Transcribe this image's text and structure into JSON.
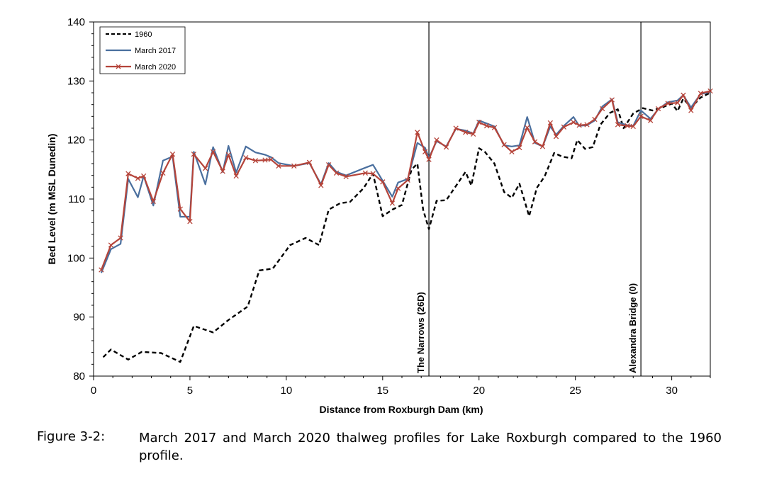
{
  "chart_data": {
    "type": "line",
    "xlabel": "Distance from Roxburgh Dam (km)",
    "ylabel": "Bed Level (m MSL Dunedin)",
    "xlim": [
      0,
      32
    ],
    "ylim": [
      80,
      140
    ],
    "xticks": [
      0,
      5,
      10,
      15,
      20,
      25,
      30
    ],
    "yticks": [
      80,
      90,
      100,
      110,
      120,
      130,
      140
    ],
    "legend_position": "top-left",
    "vertical_markers": [
      {
        "x": 17.4,
        "label": "The Narrows (26D)"
      },
      {
        "x": 28.4,
        "label": "Alexandra Bridge (0)"
      }
    ],
    "series": [
      {
        "name": "1960",
        "style": "dashed",
        "color": "#000000",
        "x": [
          0.5,
          0.9,
          1.8,
          2.5,
          3.5,
          4.5,
          5.2,
          6.2,
          7.0,
          8.0,
          8.6,
          9.3,
          10.2,
          11.0,
          11.7,
          12.2,
          12.8,
          13.3,
          14.0,
          14.5,
          15.0,
          15.5,
          16.0,
          16.5,
          16.8,
          17.1,
          17.4,
          17.8,
          18.3,
          18.8,
          19.3,
          19.6,
          20.0,
          20.3,
          20.8,
          21.3,
          21.7,
          22.1,
          22.6,
          23.0,
          23.4,
          23.9,
          24.3,
          24.8,
          25.1,
          25.5,
          25.9,
          26.3,
          26.8,
          27.2,
          27.5,
          28.0,
          28.5,
          29.0,
          29.5,
          30.0,
          30.3,
          30.6,
          31.0,
          31.5,
          32.0
        ],
        "values": [
          83.2,
          84.5,
          82.8,
          84.1,
          83.9,
          82.4,
          88.5,
          87.4,
          89.5,
          91.8,
          97.9,
          98.2,
          102.2,
          103.4,
          102.2,
          108.2,
          109.3,
          109.5,
          111.8,
          114.3,
          107.1,
          108.2,
          109.0,
          115.0,
          116.0,
          108.2,
          104.9,
          109.7,
          109.8,
          112.2,
          114.6,
          112.3,
          118.6,
          118.0,
          116.0,
          111.2,
          110.2,
          112.6,
          107.1,
          111.9,
          113.8,
          117.8,
          117.2,
          116.9,
          120.0,
          118.5,
          118.8,
          122.6,
          124.6,
          125.2,
          122.0,
          124.5,
          125.4,
          125.0,
          125.5,
          126.2,
          124.9,
          127.0,
          125.5,
          127.2,
          128.0
        ]
      },
      {
        "name": "March 2017",
        "style": "solid",
        "color": "#4a6f9e",
        "x": [
          0.4,
          0.9,
          1.4,
          1.8,
          2.3,
          2.6,
          3.1,
          3.6,
          4.1,
          4.5,
          5.0,
          5.2,
          5.8,
          6.2,
          6.7,
          7.0,
          7.4,
          7.9,
          8.4,
          8.9,
          9.2,
          9.6,
          10.4,
          11.2,
          11.8,
          12.2,
          12.6,
          13.1,
          14.1,
          14.5,
          15.0,
          15.5,
          15.8,
          16.3,
          16.8,
          17.2,
          17.4,
          17.8,
          18.3,
          18.8,
          19.3,
          19.7,
          20.0,
          20.4,
          20.8,
          21.3,
          21.7,
          22.1,
          22.5,
          22.9,
          23.3,
          23.7,
          24.0,
          24.4,
          24.9,
          25.2,
          25.6,
          26.0,
          26.4,
          26.9,
          27.2,
          27.7,
          28.0,
          28.4,
          28.9,
          29.3,
          29.8,
          30.3,
          30.6,
          31.0,
          31.5,
          32.0
        ],
        "values": [
          97.5,
          101.5,
          102.4,
          113.4,
          110.3,
          113.9,
          108.9,
          116.5,
          117.2,
          107.0,
          107.0,
          118.0,
          112.5,
          118.8,
          114.6,
          119.0,
          114.5,
          118.9,
          117.9,
          117.5,
          117.1,
          116.1,
          115.6,
          116.1,
          112.5,
          116.1,
          114.6,
          114.0,
          115.3,
          115.8,
          113.1,
          110.4,
          112.8,
          113.4,
          119.5,
          118.7,
          117.0,
          119.8,
          118.9,
          121.9,
          121.6,
          121.1,
          123.3,
          122.8,
          122.3,
          119.1,
          118.9,
          119.1,
          123.9,
          119.5,
          118.9,
          122.3,
          120.9,
          122.4,
          123.9,
          122.4,
          122.5,
          123.3,
          125.7,
          126.9,
          123.0,
          122.5,
          122.4,
          125.0,
          123.6,
          125.2,
          126.4,
          126.7,
          127.6,
          125.5,
          127.8,
          128.1
        ]
      },
      {
        "name": "March 2020",
        "style": "solid-x-markers",
        "color": "#b5443a",
        "x": [
          0.4,
          0.9,
          1.4,
          1.8,
          2.3,
          2.6,
          3.1,
          3.6,
          4.1,
          4.5,
          5.0,
          5.2,
          5.8,
          6.2,
          6.7,
          7.0,
          7.4,
          7.9,
          8.4,
          8.9,
          9.2,
          9.6,
          10.4,
          11.2,
          11.8,
          12.2,
          12.6,
          13.1,
          14.1,
          14.5,
          15.0,
          15.5,
          15.8,
          16.3,
          16.8,
          17.2,
          17.4,
          17.8,
          18.3,
          18.8,
          19.3,
          19.7,
          20.0,
          20.4,
          20.8,
          21.3,
          21.7,
          22.1,
          22.5,
          22.9,
          23.3,
          23.7,
          24.0,
          24.4,
          24.9,
          25.2,
          25.6,
          26.0,
          26.4,
          26.9,
          27.2,
          27.7,
          28.0,
          28.4,
          28.9,
          29.3,
          29.8,
          30.3,
          30.6,
          31.0,
          31.5,
          32.0
        ],
        "values": [
          98.0,
          102.2,
          103.4,
          114.3,
          113.5,
          113.9,
          109.6,
          114.4,
          117.6,
          108.3,
          106.2,
          117.6,
          115.2,
          118.0,
          114.7,
          117.5,
          113.9,
          117.0,
          116.5,
          116.6,
          116.7,
          115.6,
          115.6,
          116.2,
          112.3,
          115.8,
          114.4,
          113.8,
          114.4,
          114.3,
          112.9,
          109.3,
          111.8,
          113.2,
          121.3,
          118.0,
          116.7,
          120.0,
          118.8,
          122.0,
          121.3,
          121.0,
          123.0,
          122.4,
          122.1,
          119.2,
          118.0,
          118.7,
          122.1,
          119.7,
          118.9,
          122.9,
          120.6,
          122.2,
          123.0,
          122.5,
          122.6,
          123.5,
          125.3,
          126.8,
          122.6,
          122.4,
          122.3,
          124.0,
          123.3,
          125.3,
          126.2,
          126.3,
          127.6,
          125.0,
          127.9,
          128.3
        ]
      }
    ]
  },
  "caption": {
    "label": "Figure 3-2:",
    "text": "March 2017 and March 2020 thalweg profiles for Lake Roxburgh compared to the 1960 profile."
  }
}
